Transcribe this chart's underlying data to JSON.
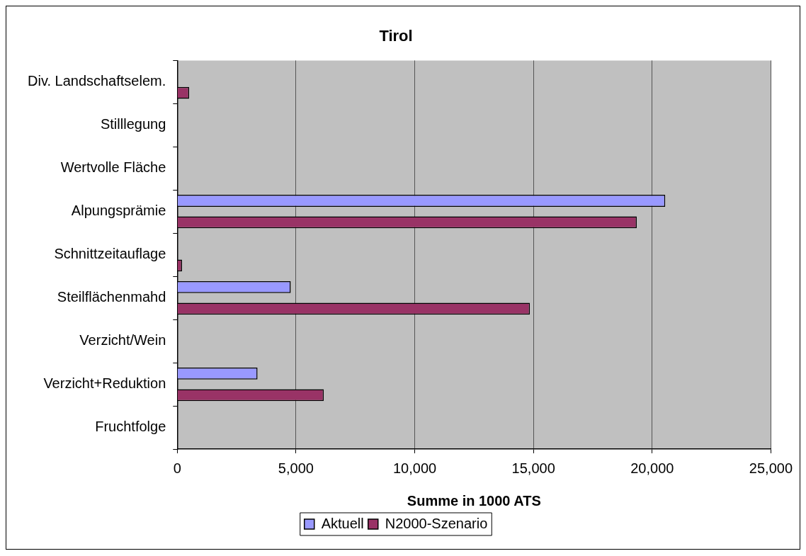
{
  "chart_data": {
    "type": "bar",
    "orientation": "horizontal",
    "title": "Tirol",
    "xlabel": "Summe in 1000 ATS",
    "categories": [
      "Div. Landschaftselem.",
      "Stilllegung",
      "Wertvolle Fläche",
      "Alpungsprämie",
      "Schnittzeitauflage",
      "Steilflächenmahd",
      "Verzicht/Wein",
      "Verzicht+Reduktion",
      "Fruchtfolge"
    ],
    "series": [
      {
        "name": "Aktuell",
        "color": "#9999ff",
        "values": [
          null,
          null,
          null,
          20550,
          null,
          4780,
          null,
          3380,
          null
        ]
      },
      {
        "name": "N2000-Szenario",
        "color": "#993366",
        "values": [
          500,
          null,
          null,
          19350,
          200,
          14850,
          null,
          6170,
          null
        ]
      }
    ],
    "xlim": [
      0,
      25000
    ],
    "xticks": [
      0,
      {
        "value": 5000,
        "label": "5,000"
      },
      {
        "value": 10000,
        "label": "10,000"
      },
      {
        "value": 15000,
        "label": "15,000"
      },
      {
        "value": 20000,
        "label": "20,000"
      },
      {
        "value": 25000,
        "label": "25,000"
      }
    ],
    "grid": "x",
    "legend": "bottom"
  }
}
